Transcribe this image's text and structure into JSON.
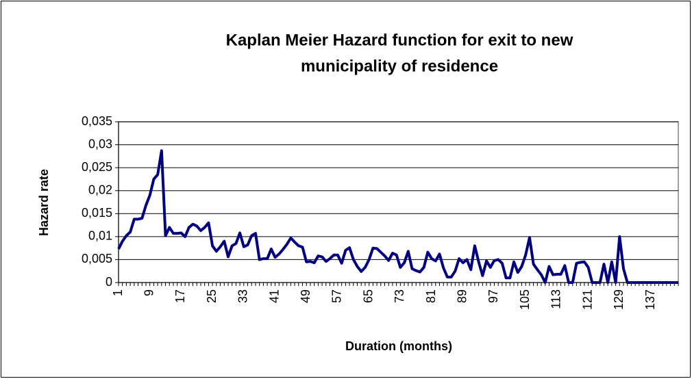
{
  "chart_data": {
    "type": "line",
    "title": [
      "Kaplan Meier Hazard function for exit to new",
      "municipality of residence"
    ],
    "xlabel": "Duration (months)",
    "ylabel": "Hazard rate",
    "categories": [
      1,
      null,
      null,
      null,
      null,
      null,
      null,
      null,
      9,
      null,
      null,
      null,
      null,
      null,
      null,
      null,
      17,
      null,
      null,
      null,
      null,
      null,
      null,
      null,
      25,
      null,
      null,
      null,
      null,
      null,
      null,
      null,
      33,
      null,
      null,
      null,
      null,
      null,
      null,
      null,
      41,
      null,
      null,
      null,
      null,
      null,
      null,
      null,
      49,
      null,
      null,
      null,
      null,
      null,
      null,
      null,
      57,
      null,
      null,
      null,
      null,
      null,
      null,
      null,
      65,
      null,
      null,
      null,
      null,
      null,
      null,
      null,
      73,
      null,
      null,
      null,
      null,
      null,
      null,
      null,
      81,
      null,
      null,
      null,
      null,
      null,
      null,
      null,
      89,
      null,
      null,
      null,
      null,
      null,
      null,
      null,
      97,
      null,
      null,
      null,
      null,
      null,
      null,
      null,
      105,
      null,
      null,
      null,
      null,
      null,
      null,
      null,
      113,
      null,
      null,
      null,
      null,
      null,
      null,
      null,
      121,
      null,
      null,
      null,
      null,
      null,
      null,
      null,
      129,
      null,
      null,
      null,
      null,
      null,
      null,
      null,
      137,
      null,
      null,
      null,
      null,
      null,
      null,
      null
    ],
    "series": [
      {
        "name": "Hazard rate",
        "color": "#000080",
        "values": [
          0.0073,
          0.009,
          0.0102,
          0.011,
          0.0138,
          0.0138,
          0.014,
          0.0168,
          0.019,
          0.0225,
          0.0235,
          0.0287,
          0.0102,
          0.012,
          0.0107,
          0.0107,
          0.0108,
          0.01,
          0.012,
          0.0127,
          0.0123,
          0.0113,
          0.012,
          0.013,
          0.008,
          0.0068,
          0.0078,
          0.009,
          0.0056,
          0.008,
          0.0085,
          0.0108,
          0.0078,
          0.0082,
          0.0102,
          0.0107,
          0.005,
          0.0052,
          0.0052,
          0.0073,
          0.0055,
          0.0062,
          0.0072,
          0.0083,
          0.0097,
          0.0088,
          0.008,
          0.0077,
          0.0045,
          0.0046,
          0.0043,
          0.0058,
          0.0056,
          0.0046,
          0.0052,
          0.006,
          0.006,
          0.0042,
          0.007,
          0.0076,
          0.005,
          0.0035,
          0.0024,
          0.0033,
          0.005,
          0.0075,
          0.0074,
          0.0066,
          0.0058,
          0.0048,
          0.0064,
          0.006,
          0.0033,
          0.0043,
          0.0068,
          0.003,
          0.0026,
          0.0023,
          0.0033,
          0.0066,
          0.0052,
          0.0047,
          0.0062,
          0.0032,
          0.0012,
          0.0012,
          0.0025,
          0.0052,
          0.0043,
          0.005,
          0.0028,
          0.008,
          0.0045,
          0.0015,
          0.0047,
          0.0033,
          0.0048,
          0.005,
          0.0042,
          0.001,
          0.001,
          0.0045,
          0.0022,
          0.0035,
          0.006,
          0.0098,
          0.004,
          0.0028,
          0.0017,
          0,
          0.0035,
          0.0017,
          0.0018,
          0.0018,
          0.0037,
          0,
          0,
          0.0042,
          0.0044,
          0.0045,
          0.0033,
          0,
          0,
          0,
          0.004,
          0,
          0.0045,
          0,
          0.01,
          0.003,
          0,
          0,
          0,
          0,
          0,
          0,
          0,
          0,
          0,
          0,
          0,
          0,
          0,
          0
        ]
      }
    ],
    "ylim": [
      0,
      0.035
    ],
    "yticks": [
      0,
      {
        "value": 0.005,
        "label": "0,005"
      },
      {
        "value": 0.01,
        "label": "0,01"
      },
      {
        "value": 0.015,
        "label": "0,015"
      },
      {
        "value": 0.02,
        "label": "0,02"
      },
      {
        "value": 0.025,
        "label": "0,025"
      },
      {
        "value": 0.03,
        "label": "0,03"
      },
      {
        "value": 0.035,
        "label": "0,035"
      }
    ],
    "grid": true
  }
}
